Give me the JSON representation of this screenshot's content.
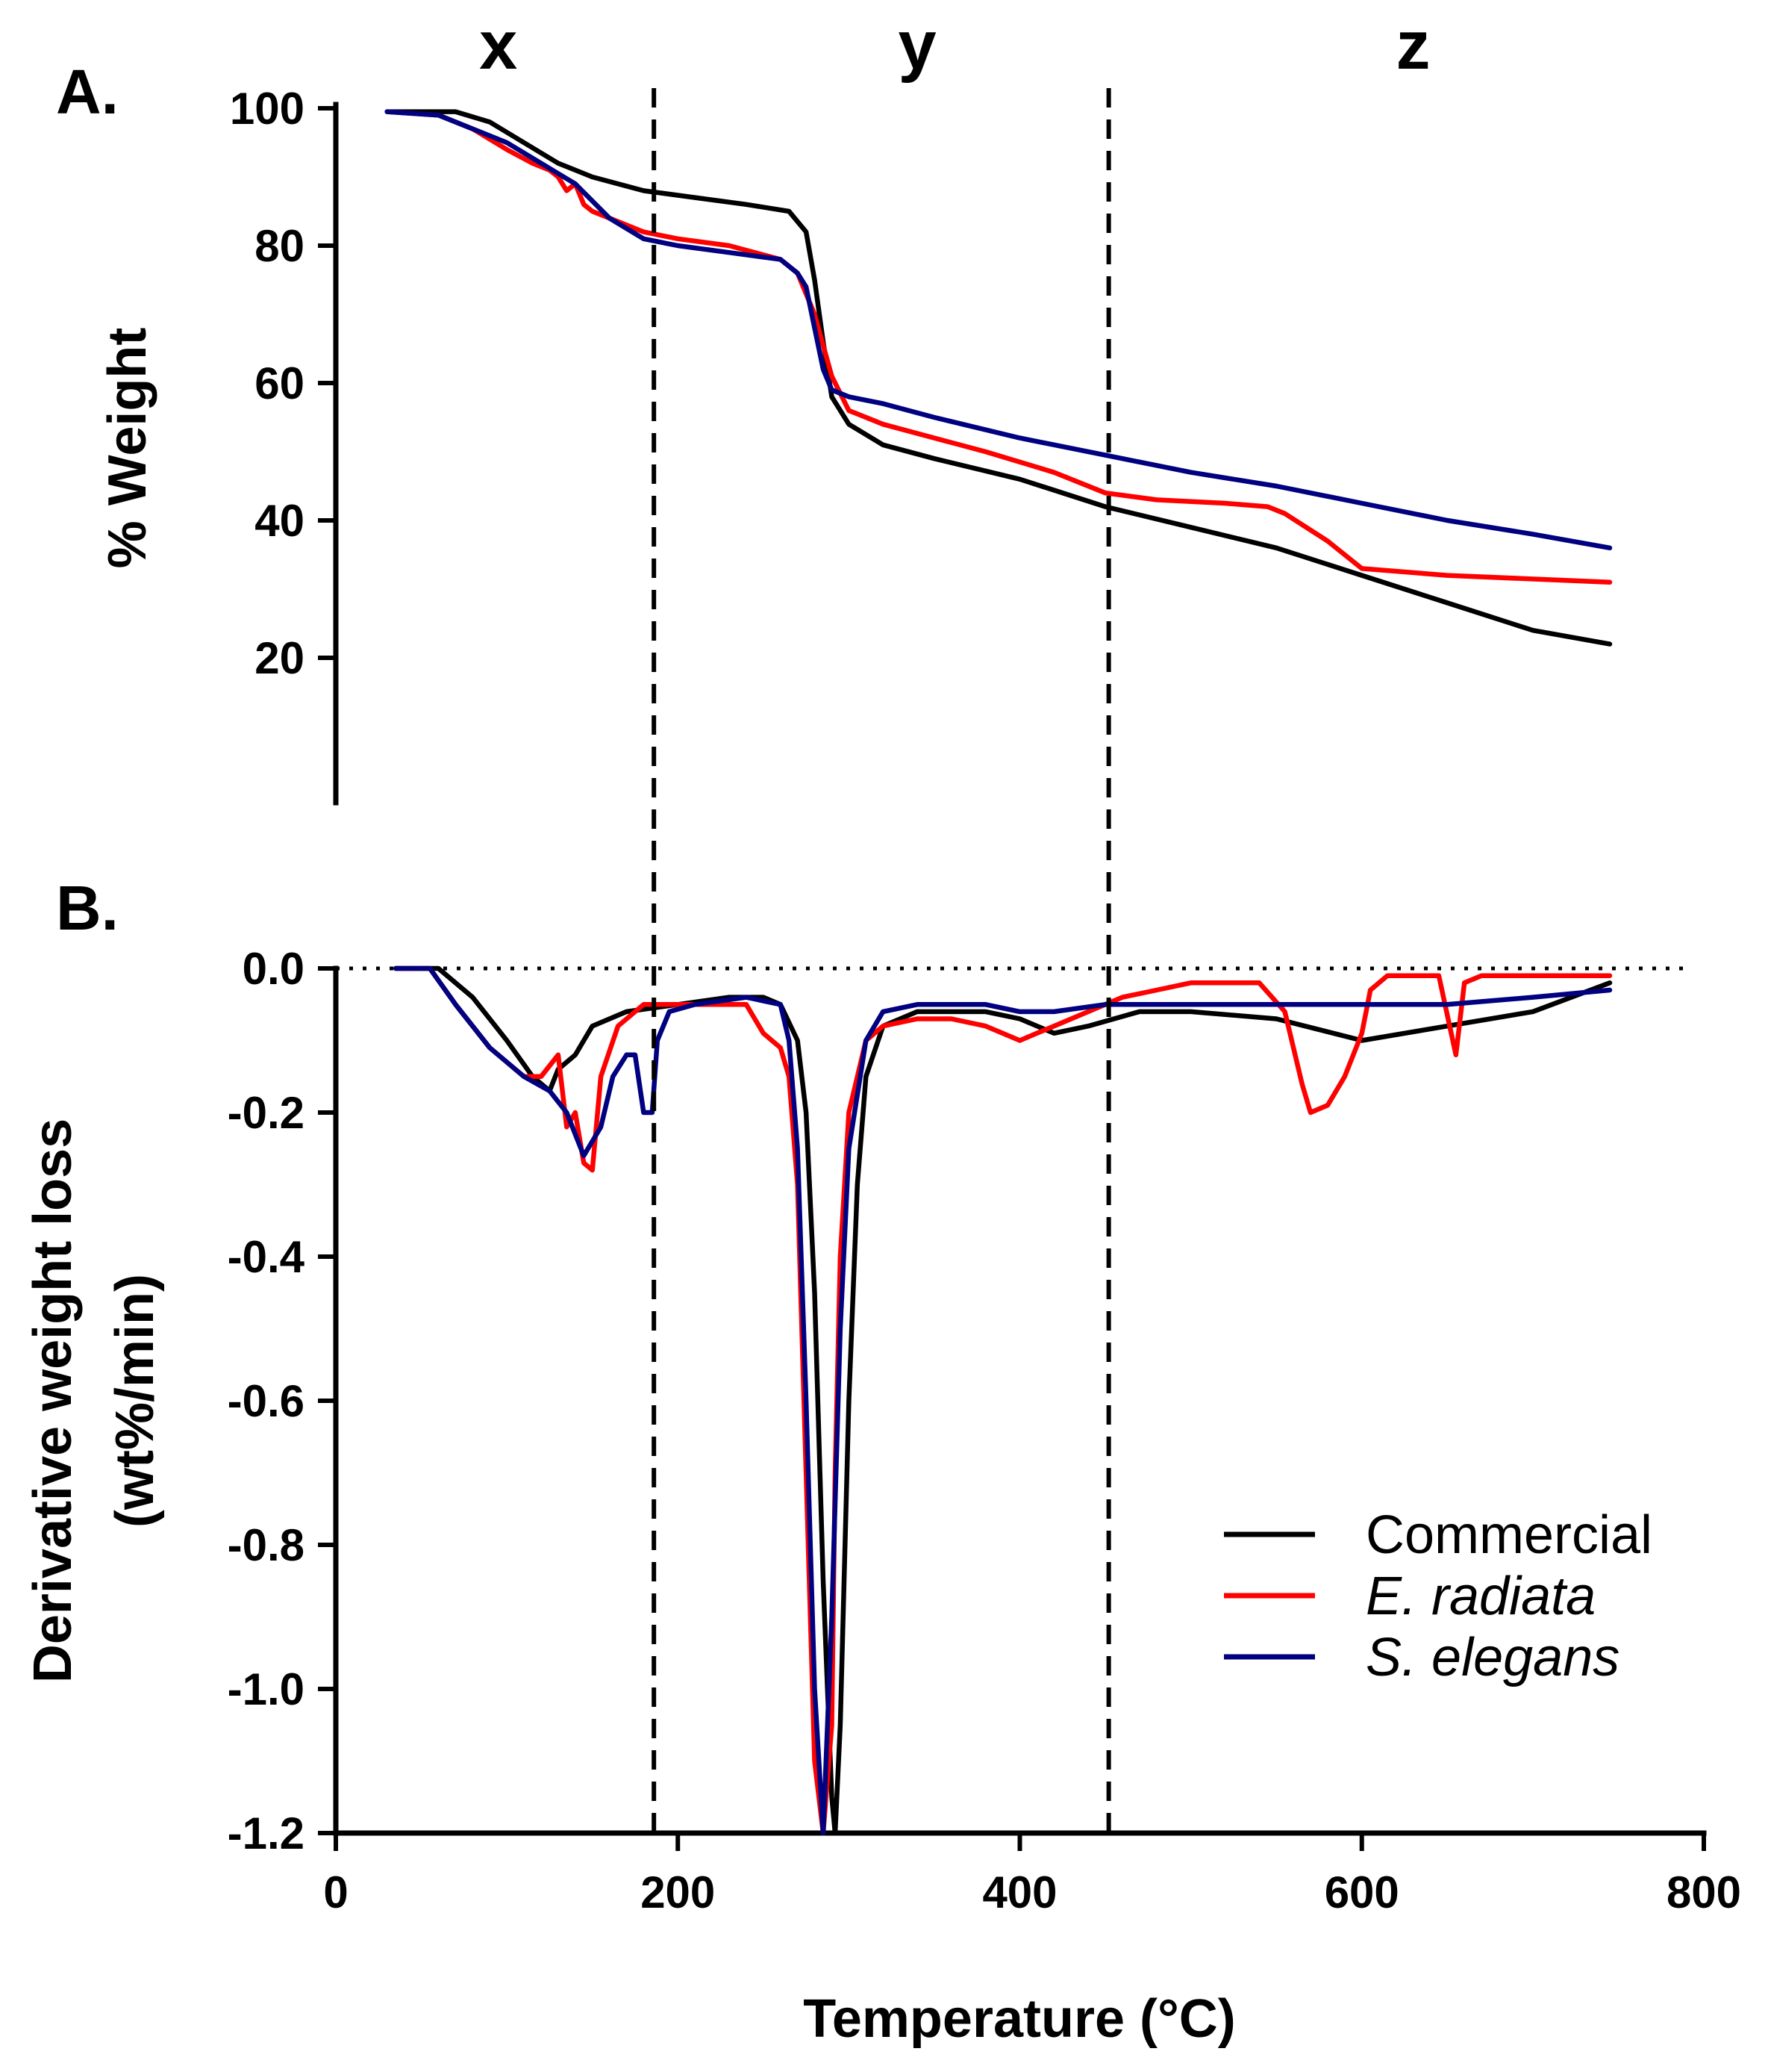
{
  "chart_data": [
    {
      "panel": "A.",
      "type": "line",
      "ylabel": "% Weight",
      "xlim": [
        0,
        800
      ],
      "ylim": [
        0,
        100
      ],
      "yticks": [
        "20",
        "40",
        "60",
        "80",
        "100"
      ],
      "regions": [
        {
          "label": "x",
          "x_center": 95
        },
        {
          "label": "y",
          "x_center": 340
        },
        {
          "label": "z",
          "x_center": 630
        }
      ],
      "dividers_x": [
        186,
        452
      ],
      "series": [
        {
          "name": "Commercial",
          "color": "#000000",
          "x": [
            30,
            70,
            90,
            110,
            130,
            150,
            180,
            210,
            240,
            265,
            275,
            280,
            285,
            290,
            300,
            320,
            350,
            400,
            450,
            500,
            550,
            600,
            650,
            700,
            745
          ],
          "y": [
            99.5,
            99.5,
            98,
            95,
            92,
            90,
            88,
            87,
            86,
            85,
            82,
            75,
            66,
            58,
            54,
            51,
            49,
            46,
            42,
            39,
            36,
            32,
            28,
            24,
            22
          ]
        },
        {
          "name": "E. radiata",
          "color": "#ff0000",
          "x": [
            30,
            60,
            80,
            100,
            115,
            125,
            130,
            135,
            140,
            145,
            150,
            160,
            180,
            200,
            230,
            260,
            270,
            280,
            290,
            300,
            320,
            350,
            380,
            420,
            450,
            480,
            520,
            545,
            555,
            580,
            600,
            650,
            745
          ],
          "y": [
            99.5,
            99,
            97,
            94,
            92,
            91,
            90,
            88,
            89,
            86,
            85,
            84,
            82,
            81,
            80,
            78,
            76,
            70,
            61,
            56,
            54,
            52,
            50,
            47,
            44,
            43,
            42.5,
            42,
            41,
            37,
            33,
            32,
            31
          ]
        },
        {
          "name": "S. elegans",
          "color": "#000080",
          "x": [
            30,
            60,
            80,
            100,
            120,
            140,
            160,
            180,
            200,
            230,
            260,
            270,
            275,
            280,
            285,
            290,
            300,
            320,
            350,
            400,
            450,
            500,
            550,
            600,
            650,
            700,
            745
          ],
          "y": [
            99.5,
            99,
            97,
            95,
            92,
            89,
            84,
            81,
            80,
            79,
            78,
            76,
            74,
            68,
            62,
            59,
            58,
            57,
            55,
            52,
            49.5,
            47,
            45,
            42.5,
            40,
            38,
            36
          ]
        }
      ]
    },
    {
      "panel": "B.",
      "type": "line",
      "xlabel": "Temperature (°C)",
      "ylabel_lines": [
        "Derivative weight loss",
        "(wt%/min)"
      ],
      "xlim": [
        0,
        800
      ],
      "ylim": [
        -1.2,
        0.0
      ],
      "xticks": [
        "0",
        "200",
        "400",
        "600",
        "800"
      ],
      "yticks": [
        "0.0",
        "-0.2",
        "-0.4",
        "-0.6",
        "-0.8",
        "-1.0",
        "-1.2"
      ],
      "zero_line": 0.0,
      "series": [
        {
          "name": "Commercial",
          "color": "#000000",
          "x": [
            35,
            60,
            80,
            100,
            115,
            125,
            130,
            140,
            150,
            170,
            200,
            230,
            250,
            260,
            270,
            275,
            280,
            285,
            290,
            292,
            295,
            300,
            305,
            310,
            320,
            340,
            360,
            380,
            400,
            420,
            440,
            470,
            500,
            550,
            600,
            650,
            700,
            745
          ],
          "y": [
            0,
            0,
            -0.04,
            -0.1,
            -0.15,
            -0.17,
            -0.14,
            -0.12,
            -0.08,
            -0.06,
            -0.05,
            -0.04,
            -0.04,
            -0.05,
            -0.1,
            -0.2,
            -0.45,
            -0.85,
            -1.15,
            -1.2,
            -1.05,
            -0.6,
            -0.3,
            -0.15,
            -0.08,
            -0.06,
            -0.06,
            -0.06,
            -0.07,
            -0.09,
            -0.08,
            -0.06,
            -0.06,
            -0.07,
            -0.1,
            -0.08,
            -0.06,
            -0.02
          ]
        },
        {
          "name": "E. radiata",
          "color": "#ff0000",
          "x": [
            35,
            55,
            70,
            90,
            110,
            120,
            130,
            135,
            140,
            145,
            150,
            155,
            165,
            180,
            200,
            220,
            240,
            250,
            260,
            265,
            270,
            275,
            280,
            285,
            290,
            292,
            295,
            300,
            310,
            320,
            340,
            360,
            380,
            400,
            410,
            420,
            440,
            460,
            480,
            500,
            520,
            540,
            555,
            565,
            570,
            580,
            590,
            600,
            605,
            615,
            630,
            645,
            655,
            660,
            670,
            700,
            745
          ],
          "y": [
            0,
            0,
            -0.05,
            -0.11,
            -0.15,
            -0.15,
            -0.12,
            -0.22,
            -0.2,
            -0.27,
            -0.28,
            -0.15,
            -0.08,
            -0.05,
            -0.05,
            -0.05,
            -0.05,
            -0.09,
            -0.11,
            -0.15,
            -0.3,
            -0.7,
            -1.1,
            -1.2,
            -1.05,
            -0.7,
            -0.4,
            -0.2,
            -0.1,
            -0.08,
            -0.07,
            -0.07,
            -0.08,
            -0.1,
            -0.09,
            -0.08,
            -0.06,
            -0.04,
            -0.03,
            -0.02,
            -0.02,
            -0.02,
            -0.06,
            -0.16,
            -0.2,
            -0.19,
            -0.15,
            -0.09,
            -0.03,
            -0.01,
            -0.01,
            -0.01,
            -0.12,
            -0.02,
            -0.01,
            -0.01,
            -0.01
          ]
        },
        {
          "name": "S. elegans",
          "color": "#000080",
          "x": [
            35,
            55,
            70,
            90,
            110,
            125,
            135,
            145,
            155,
            162,
            170,
            175,
            180,
            185,
            188,
            195,
            210,
            240,
            260,
            265,
            270,
            275,
            280,
            285,
            290,
            295,
            300,
            310,
            320,
            340,
            360,
            380,
            400,
            420,
            450,
            500,
            550,
            600,
            650,
            700,
            745
          ],
          "y": [
            0,
            0,
            -0.05,
            -0.11,
            -0.15,
            -0.17,
            -0.2,
            -0.26,
            -0.22,
            -0.15,
            -0.12,
            -0.12,
            -0.2,
            -0.2,
            -0.1,
            -0.06,
            -0.05,
            -0.04,
            -0.05,
            -0.1,
            -0.25,
            -0.6,
            -1.0,
            -1.2,
            -0.9,
            -0.5,
            -0.25,
            -0.1,
            -0.06,
            -0.05,
            -0.05,
            -0.05,
            -0.06,
            -0.06,
            -0.05,
            -0.05,
            -0.05,
            -0.05,
            -0.05,
            -0.04,
            -0.03
          ]
        }
      ]
    }
  ],
  "legend": [
    {
      "name": "Commercial",
      "color": "#000000",
      "italic": false
    },
    {
      "name": "E. radiata",
      "color": "#ff0000",
      "italic": true
    },
    {
      "name": "S. elegans",
      "color": "#000080",
      "italic": true
    }
  ]
}
